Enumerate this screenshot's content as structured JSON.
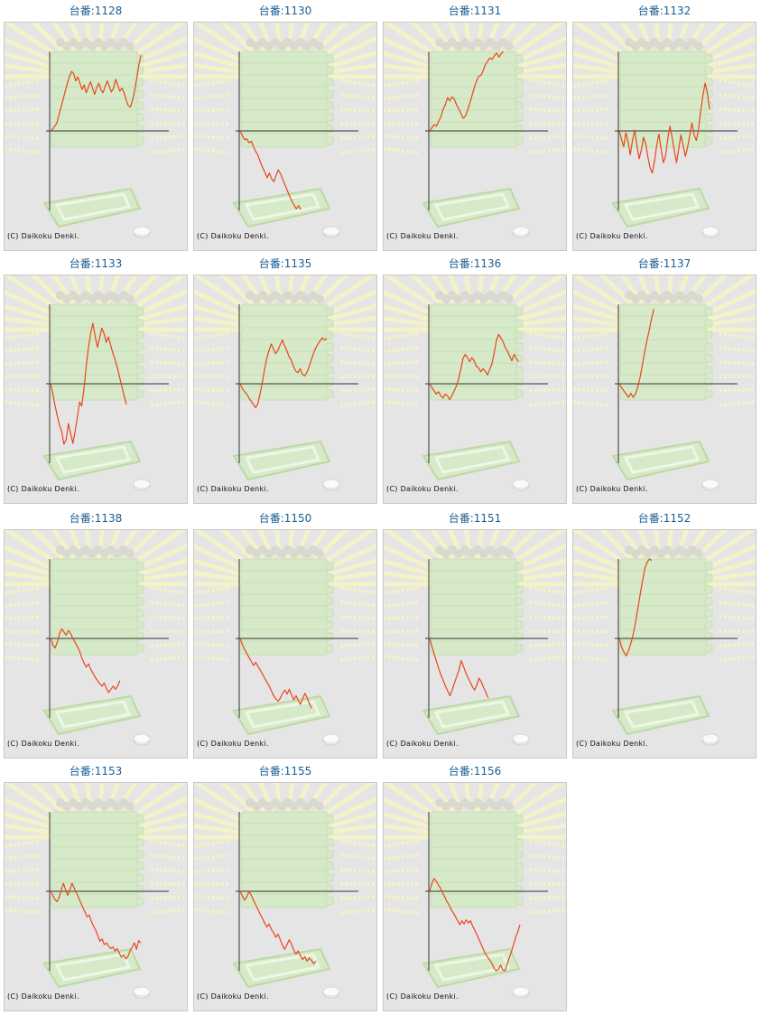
{
  "colors": {
    "line": "#e8461b",
    "axis": "#333333",
    "title": "#1a5f95",
    "panel": "#e5e5e5"
  },
  "chart_data": [
    {
      "type": "line",
      "title": "台番:1128",
      "credit": "(C) Daikoku Denki.",
      "y": [
        0,
        0.2,
        0.6,
        1.0,
        2.0,
        3.0,
        4.0,
        5.0,
        6.0,
        6.8,
        7.5,
        7.2,
        6.3,
        6.8,
        6.0,
        5.2,
        5.8,
        4.8,
        5.5,
        6.2,
        5.4,
        4.6,
        5.5,
        6.0,
        5.2,
        4.8,
        5.6,
        6.3,
        5.6,
        4.9,
        5.4,
        6.5,
        5.8,
        5.0,
        5.4,
        4.8,
        3.9,
        3.2,
        3.0,
        3.8,
        5.0,
        6.5,
        8.2,
        9.5
      ]
    },
    {
      "type": "line",
      "title": "台番:1130",
      "credit": "(C) Daikoku Denki.",
      "y": [
        0,
        -0.6,
        -1.1,
        -1.0,
        -1.5,
        -1.3,
        -2.0,
        -2.6,
        -3.1,
        -3.9,
        -4.6,
        -5.2,
        -5.9,
        -5.3,
        -6.0,
        -6.4,
        -5.6,
        -4.9,
        -5.4,
        -6.1,
        -6.8,
        -7.5,
        -8.2,
        -8.8,
        -9.3,
        -9.8,
        -9.4,
        -9.9
      ]
    },
    {
      "type": "line",
      "title": "台番:1131",
      "credit": "(C) Daikoku Denki.",
      "y": [
        0,
        0.4,
        0.8,
        0.6,
        1.2,
        1.8,
        2.7,
        3.3,
        4.2,
        3.8,
        4.3,
        4.0,
        3.3,
        2.8,
        2.2,
        1.6,
        1.9,
        2.6,
        3.5,
        4.5,
        5.5,
        6.3,
        6.9,
        7.0,
        7.6,
        8.4,
        8.8,
        9.2,
        9.0,
        9.5,
        9.8,
        9.3,
        9.7,
        10.0
      ]
    },
    {
      "type": "line",
      "title": "台番:1132",
      "credit": "(C) Daikoku Denki.",
      "y": [
        0,
        -1.0,
        -2.0,
        -0.2,
        -1.4,
        -3.0,
        -1.2,
        0.1,
        -1.8,
        -3.5,
        -2.4,
        -0.8,
        -1.6,
        -3.3,
        -4.6,
        -5.3,
        -3.8,
        -1.8,
        -0.4,
        -2.2,
        -4.0,
        -3.2,
        -1.0,
        0.6,
        -0.8,
        -2.5,
        -4.0,
        -2.2,
        -0.5,
        -1.8,
        -3.2,
        -2.1,
        -0.6,
        1.0,
        -0.5,
        -1.2,
        0.2,
        2.5,
        4.5,
        6.0,
        4.8,
        2.7
      ]
    },
    {
      "type": "line",
      "title": "台番:1133",
      "credit": "(C) Daikoku Denki.",
      "y": [
        0,
        -1.2,
        -2.7,
        -4.0,
        -5.2,
        -6.0,
        -7.6,
        -7.0,
        -5.0,
        -6.2,
        -7.5,
        -6.0,
        -4.3,
        -2.3,
        -2.8,
        -0.5,
        2.2,
        4.6,
        6.4,
        7.6,
        6.0,
        4.6,
        5.8,
        7.0,
        6.3,
        5.2,
        5.9,
        4.8,
        3.8,
        3.0,
        2.0,
        0.8,
        -0.4,
        -1.5,
        -2.6
      ]
    },
    {
      "type": "line",
      "title": "台番:1135",
      "credit": "(C) Daikoku Denki.",
      "y": [
        0,
        -0.6,
        -1.0,
        -1.3,
        -1.8,
        -2.2,
        -2.6,
        -3.0,
        -2.5,
        -1.2,
        0.2,
        1.8,
        3.2,
        4.2,
        5.0,
        4.4,
        3.8,
        4.2,
        4.9,
        5.5,
        4.8,
        4.2,
        3.4,
        3.0,
        2.2,
        1.6,
        1.4,
        1.9,
        1.2,
        1.0,
        1.4,
        2.1,
        3.0,
        3.8,
        4.5,
        5.0,
        5.4,
        5.8,
        5.5,
        5.7
      ]
    },
    {
      "type": "line",
      "title": "台番:1136",
      "credit": "(C) Daikoku Denki.",
      "y": [
        0,
        -0.5,
        -0.9,
        -1.3,
        -1.0,
        -1.5,
        -1.8,
        -1.3,
        -1.5,
        -2.0,
        -1.5,
        -0.9,
        -0.3,
        0.6,
        1.8,
        3.2,
        3.7,
        3.3,
        2.8,
        3.3,
        2.9,
        2.2,
        2.0,
        1.5,
        1.9,
        1.6,
        1.1,
        1.8,
        2.5,
        3.8,
        5.4,
        6.2,
        5.8,
        5.3,
        4.6,
        4.1,
        3.5,
        2.9,
        3.7,
        3.2,
        2.8
      ]
    },
    {
      "type": "line",
      "title": "台番:1137",
      "credit": "(C) Daikoku Denki.",
      "y": [
        0,
        -0.5,
        -0.9,
        -1.3,
        -1.7,
        -1.2,
        -1.7,
        -1.3,
        -0.4,
        0.8,
        2.4,
        4.0,
        5.5,
        6.8,
        8.2,
        9.4
      ]
    },
    {
      "type": "line",
      "title": "台番:1138",
      "credit": "(C) Daikoku Denki.",
      "y": [
        0,
        -0.8,
        -1.2,
        -0.5,
        0.6,
        1.2,
        0.8,
        0.4,
        1.0,
        0.6,
        0.0,
        -0.5,
        -1.0,
        -1.6,
        -2.5,
        -3.1,
        -3.6,
        -3.2,
        -3.9,
        -4.4,
        -4.9,
        -5.3,
        -5.7,
        -6.0,
        -5.6,
        -6.3,
        -6.8,
        -6.4,
        -6.0,
        -6.4,
        -6.0,
        -5.3
      ]
    },
    {
      "type": "line",
      "title": "台番:1150",
      "credit": "(C) Daikoku Denki.",
      "y": [
        0,
        -0.8,
        -1.4,
        -1.9,
        -2.4,
        -2.9,
        -3.4,
        -3.0,
        -3.5,
        -4.0,
        -4.5,
        -5.0,
        -5.5,
        -6.0,
        -6.6,
        -7.2,
        -7.6,
        -7.9,
        -7.5,
        -6.9,
        -6.5,
        -7.0,
        -6.4,
        -7.1,
        -7.7,
        -7.2,
        -7.8,
        -8.3,
        -7.6,
        -6.9,
        -7.5,
        -8.2,
        -8.8
      ]
    },
    {
      "type": "line",
      "title": "台番:1151",
      "credit": "(C) Daikoku Denki.",
      "y": [
        0,
        -1.0,
        -2.0,
        -2.9,
        -3.8,
        -4.6,
        -5.3,
        -6.0,
        -6.6,
        -7.2,
        -6.5,
        -5.6,
        -4.8,
        -4.0,
        -2.8,
        -3.5,
        -4.3,
        -4.9,
        -5.5,
        -6.1,
        -6.5,
        -5.8,
        -5.0,
        -5.5,
        -6.2,
        -6.8,
        -7.5
      ]
    },
    {
      "type": "line",
      "title": "台番:1152",
      "credit": "(C) Daikoku Denki.",
      "y": [
        0,
        -1.1,
        -1.7,
        -2.2,
        -1.5,
        -0.6,
        0.5,
        2.0,
        3.8,
        5.5,
        7.2,
        8.8,
        9.6,
        10.0,
        9.8
      ]
    },
    {
      "type": "line",
      "title": "台番:1153",
      "credit": "(C) Daikoku Denki.",
      "y": [
        0,
        -0.5,
        -1.0,
        -1.3,
        -0.8,
        0.2,
        1.0,
        0.2,
        -0.5,
        0.2,
        1.0,
        0.4,
        -0.2,
        -0.8,
        -1.4,
        -2.0,
        -2.6,
        -3.2,
        -3.0,
        -3.8,
        -4.4,
        -4.9,
        -5.6,
        -6.3,
        -6.0,
        -6.7,
        -6.5,
        -6.9,
        -7.2,
        -7.0,
        -7.5,
        -7.2,
        -7.8,
        -8.3,
        -8.0,
        -8.5,
        -8.2,
        -7.5,
        -7.0,
        -6.5,
        -7.3,
        -6.2,
        -6.5
      ]
    },
    {
      "type": "line",
      "title": "台番:1155",
      "credit": "(C) Daikoku Denki.",
      "y": [
        0,
        -0.6,
        -1.1,
        -0.7,
        0.0,
        -0.5,
        -1.1,
        -1.7,
        -2.3,
        -2.9,
        -3.4,
        -4.0,
        -4.5,
        -4.1,
        -4.8,
        -5.2,
        -5.8,
        -5.4,
        -6.1,
        -6.8,
        -7.3,
        -6.7,
        -6.1,
        -6.6,
        -7.4,
        -7.9,
        -7.5,
        -8.1,
        -8.6,
        -8.2,
        -8.8,
        -8.4,
        -8.7,
        -9.1,
        -8.8
      ]
    },
    {
      "type": "line",
      "title": "台番:1156",
      "credit": "(C) Daikoku Denki.",
      "y": [
        0,
        1.0,
        1.6,
        1.3,
        0.8,
        0.4,
        -0.2,
        -0.7,
        -1.3,
        -1.7,
        -2.3,
        -2.7,
        -3.2,
        -3.7,
        -4.2,
        -3.7,
        -4.1,
        -3.6,
        -4.0,
        -3.7,
        -4.4,
        -4.9,
        -5.5,
        -6.1,
        -6.7,
        -7.3,
        -7.9,
        -8.3,
        -8.7,
        -9.1,
        -9.7,
        -10.0,
        -9.8,
        -9.3,
        -9.9,
        -10.0,
        -9.2,
        -8.4,
        -7.6,
        -6.7,
        -5.8,
        -5.1,
        -4.2
      ]
    }
  ]
}
